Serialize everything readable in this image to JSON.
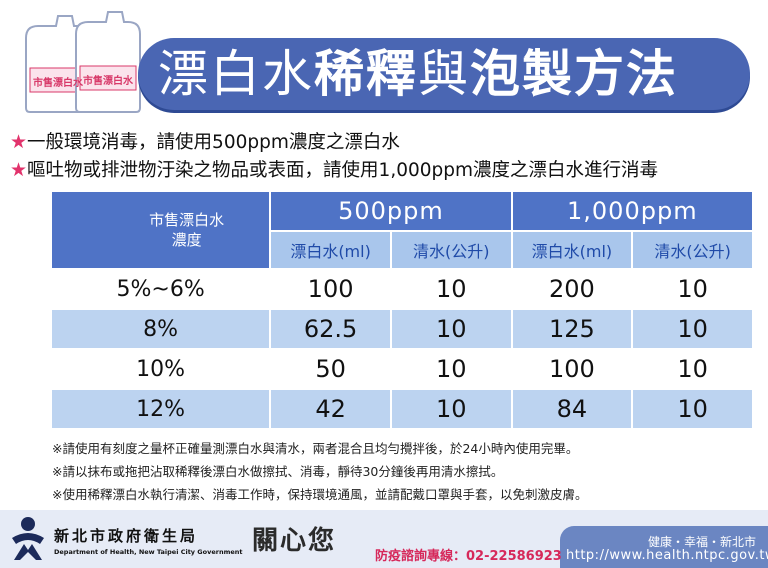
{
  "banner": {
    "title_light1": "漂白水",
    "title_bold1": "稀釋",
    "title_light2": "與",
    "title_bold2": "泡製方法"
  },
  "bottle_tags": [
    "市售漂白水",
    "市售漂白水"
  ],
  "bullets": [
    "一般環境消毒，請使用500ppm濃度之漂白水",
    "嘔吐物或排泄物汙染之物品或表面，請使用1,000ppm濃度之漂白水進行消毒"
  ],
  "bullet_star": "★",
  "table": {
    "concentration_header": [
      "市售漂白水",
      "濃度"
    ],
    "groups": [
      "500ppm",
      "1,000ppm"
    ],
    "sub_headers": [
      "漂白水(ml)",
      "清水(公升)",
      "漂白水(ml)",
      "清水(公升)"
    ],
    "rows": [
      {
        "conc": "5%~6%",
        "values": [
          "100",
          "10",
          "200",
          "10"
        ]
      },
      {
        "conc": "8%",
        "values": [
          "62.5",
          "10",
          "125",
          "10"
        ]
      },
      {
        "conc": "10%",
        "values": [
          "50",
          "10",
          "100",
          "10"
        ]
      },
      {
        "conc": "12%",
        "values": [
          "42",
          "10",
          "84",
          "10"
        ]
      }
    ]
  },
  "notes": [
    "※請使用有刻度之量杯正確量測漂白水與清水，兩者混合且均勻攪拌後，於24小時內使用完畢。",
    "※請以抹布或拖把沾取稀釋後漂白水做擦拭、消毒，靜待30分鐘後再用清水擦拭。",
    "※使用稀釋漂白水執行清潔、消毒工作時，保持環境通風，並請配戴口罩與手套，以免刺激皮膚。"
  ],
  "footer": {
    "dept_name": "新北市政府衛生局",
    "dept_en": "Department of Health, New Taipei City Government",
    "care": "關心您",
    "hotline": "防疫諮詢專線：02-22586923",
    "slogan": "健康・幸福・新北市",
    "url": "http://www.health.ntpc.gov.tw"
  },
  "colors": {
    "banner": "#4a66b3",
    "header": "#4f73c6",
    "subheader": "#a9c6ec",
    "stripe": "#bcd3f0",
    "star": "#e2336c"
  }
}
